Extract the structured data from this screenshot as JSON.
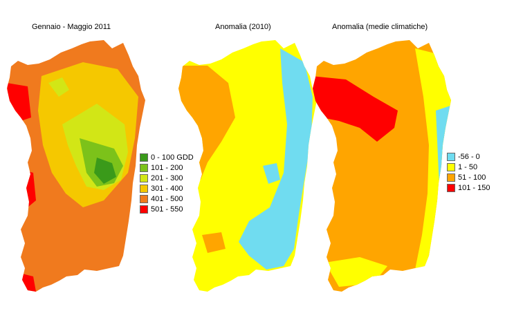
{
  "titles": {
    "map1": "Gennaio - Maggio 2011",
    "map2": "Anomalia (2010)",
    "map3": "Anomalia (medie climatiche)"
  },
  "legend1": [
    {
      "label": "0 - 100 GDD",
      "color": "#3a9a1a"
    },
    {
      "label": "101 - 200",
      "color": "#7cc21a"
    },
    {
      "label": "201 - 300",
      "color": "#d2e616"
    },
    {
      "label": "301 - 400",
      "color": "#f5c800"
    },
    {
      "label": "401 - 500",
      "color": "#f07a1e"
    },
    {
      "label": "501 - 550",
      "color": "#ff0000"
    }
  ],
  "legend2": [
    {
      "label": "-56 - 0",
      "color": "#70dcf0"
    },
    {
      "label": "1 - 50",
      "color": "#ffff00"
    },
    {
      "label": "51 - 100",
      "color": "#ffa500"
    },
    {
      "label": "101 - 150",
      "color": "#ff0000"
    }
  ]
}
